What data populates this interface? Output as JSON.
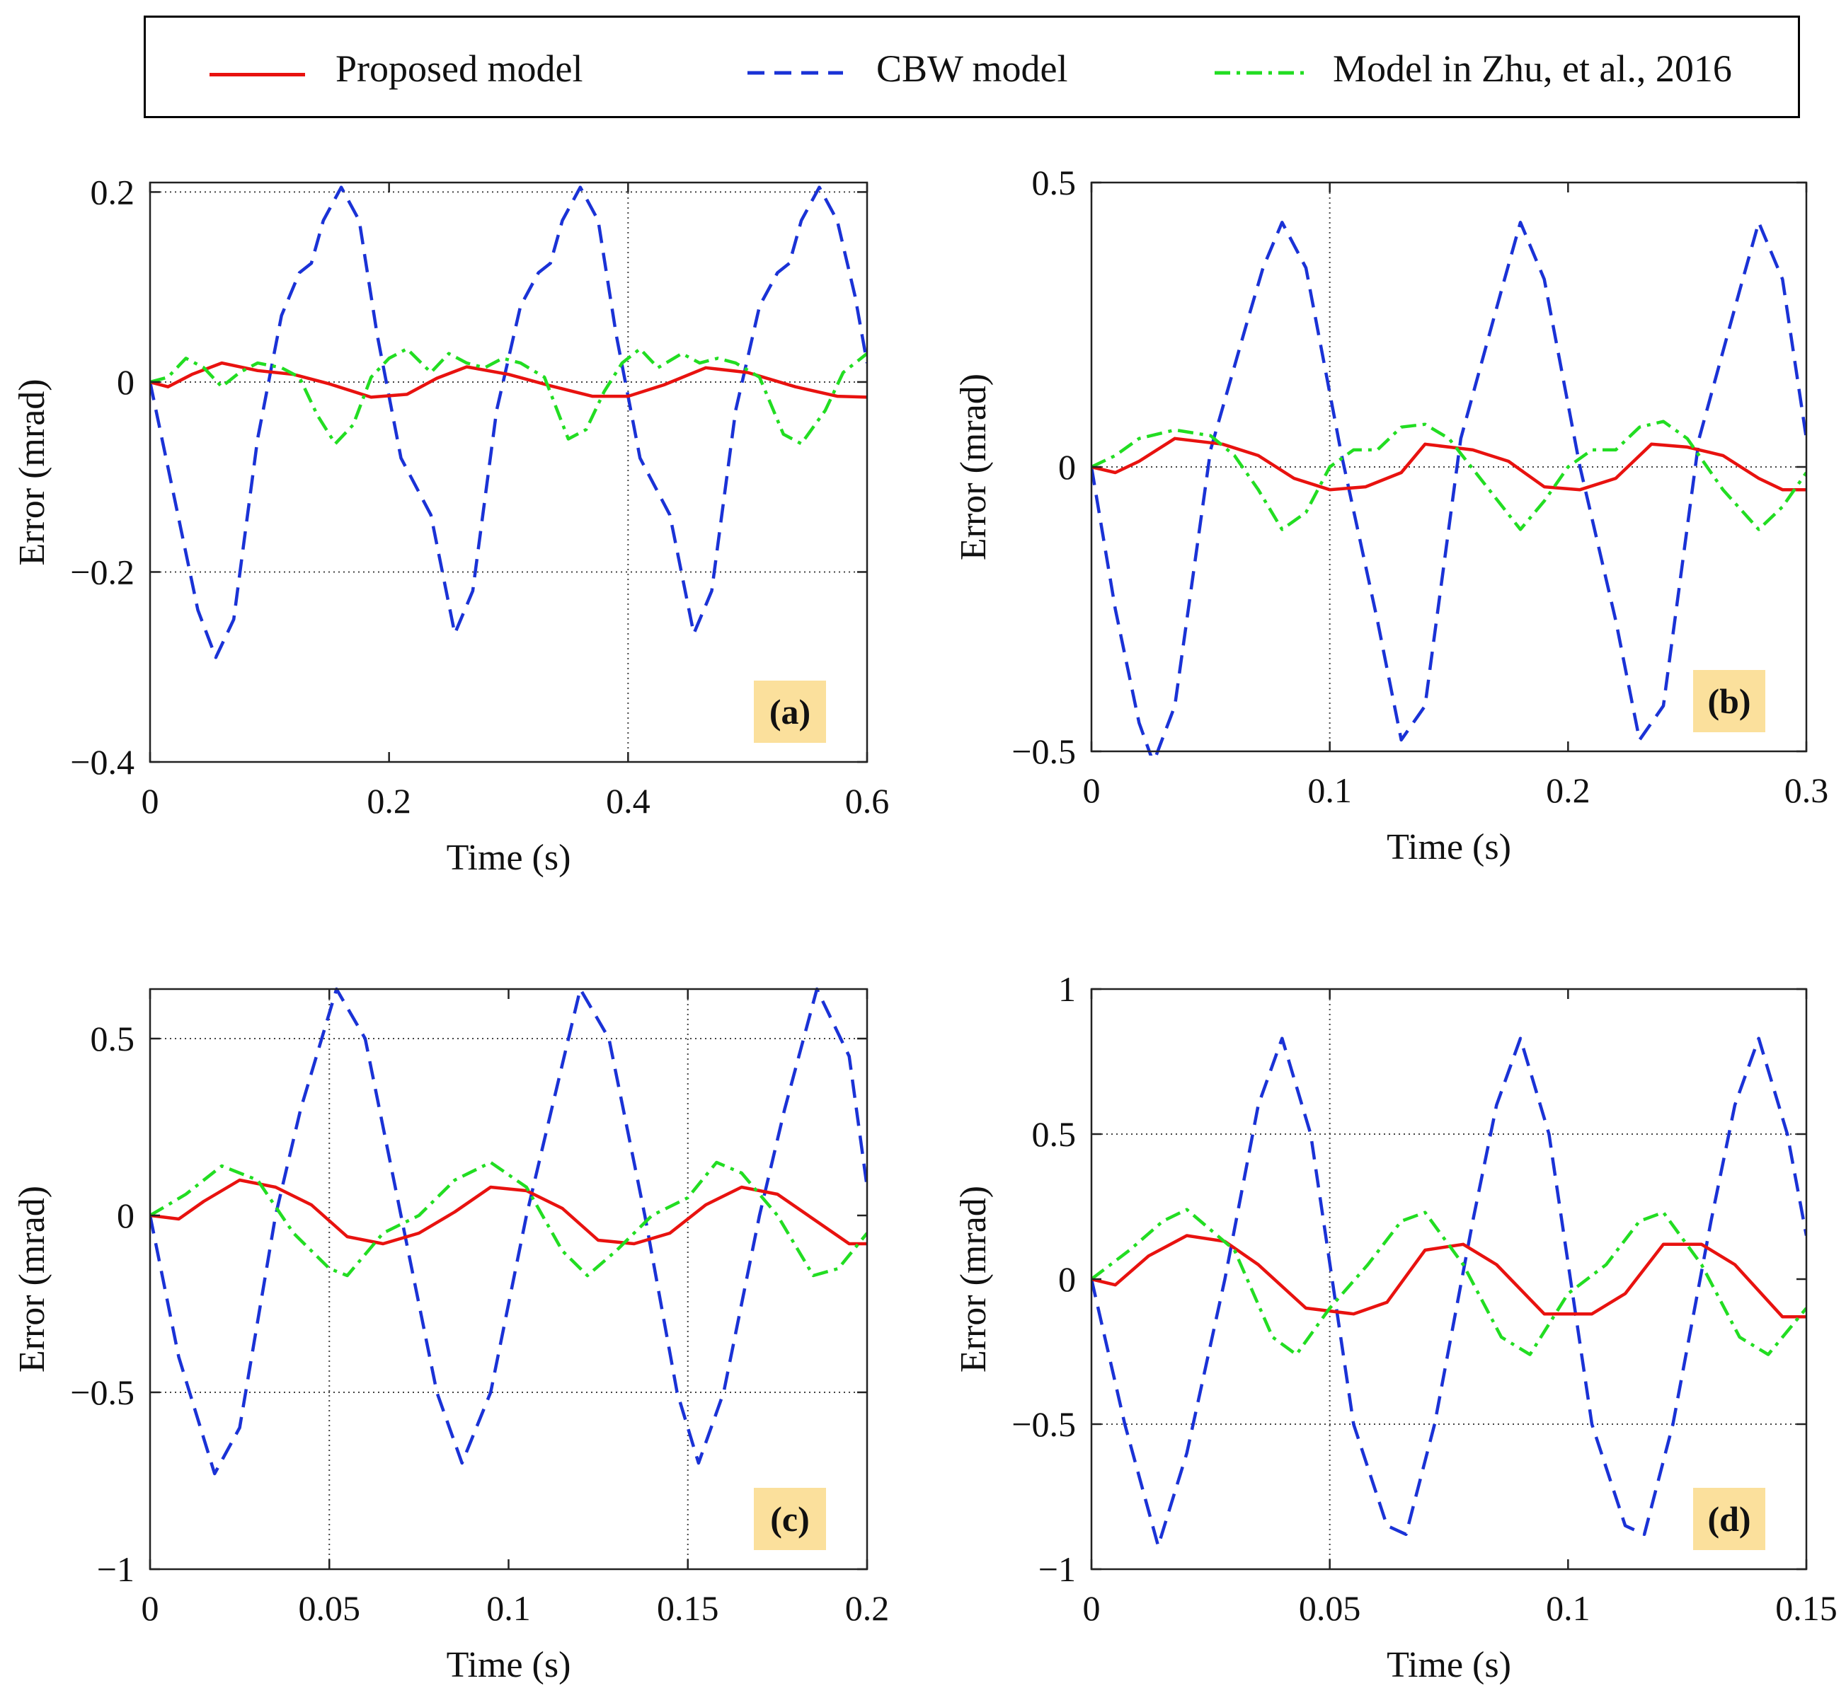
{
  "legend": {
    "items": [
      {
        "label": "Proposed model",
        "color": "#e8120f",
        "style": "solid"
      },
      {
        "label": "CBW model",
        "color": "#1a32d6",
        "style": "dashed"
      },
      {
        "label": "Model in Zhu, et al., 2016",
        "color": "#22dd22",
        "style": "dashdot"
      }
    ]
  },
  "chart_data": [
    {
      "type": "line",
      "panel_label": "(a)",
      "xlabel": "Time (s)",
      "ylabel": "Error (mrad)",
      "xlim": [
        0,
        0.6
      ],
      "ylim": [
        -0.4,
        0.21
      ],
      "xticks": [
        0,
        0.2,
        0.4,
        0.6
      ],
      "xtick_labels": [
        "0",
        "0.2",
        "0.4",
        "0.6"
      ],
      "yticks": [
        -0.4,
        -0.2,
        0,
        0.2
      ],
      "ytick_labels": [
        "−0.4",
        "−0.2",
        "0",
        "0.2"
      ],
      "grid_x": [
        0.4
      ],
      "grid_y": [
        -0.2,
        0,
        0.2
      ],
      "series": [
        {
          "name": "CBW model",
          "x": [
            0,
            0.02,
            0.04,
            0.055,
            0.07,
            0.09,
            0.11,
            0.125,
            0.135,
            0.145,
            0.16,
            0.175,
            0.19,
            0.21,
            0.235,
            0.255,
            0.27,
            0.29,
            0.31,
            0.325,
            0.335,
            0.345,
            0.36,
            0.375,
            0.39,
            0.41,
            0.435,
            0.455,
            0.47,
            0.49,
            0.51,
            0.525,
            0.535,
            0.545,
            0.56,
            0.575,
            0.59,
            0.6
          ],
          "y": [
            0,
            -0.12,
            -0.24,
            -0.29,
            -0.25,
            -0.06,
            0.07,
            0.115,
            0.125,
            0.17,
            0.205,
            0.17,
            0.05,
            -0.08,
            -0.14,
            -0.265,
            -0.22,
            -0.03,
            0.08,
            0.115,
            0.125,
            0.17,
            0.205,
            0.17,
            0.05,
            -0.08,
            -0.14,
            -0.265,
            -0.22,
            -0.03,
            0.08,
            0.115,
            0.125,
            0.17,
            0.205,
            0.17,
            0.09,
            0.02
          ]
        },
        {
          "name": "Proposed model",
          "x": [
            0,
            0.015,
            0.035,
            0.06,
            0.09,
            0.12,
            0.15,
            0.185,
            0.215,
            0.24,
            0.265,
            0.3,
            0.335,
            0.37,
            0.4,
            0.43,
            0.465,
            0.5,
            0.54,
            0.575,
            0.6
          ],
          "y": [
            0,
            -0.005,
            0.008,
            0.02,
            0.012,
            0.008,
            -0.002,
            -0.016,
            -0.013,
            0.004,
            0.016,
            0.008,
            -0.004,
            -0.015,
            -0.015,
            -0.003,
            0.015,
            0.01,
            -0.005,
            -0.015,
            -0.016
          ]
        },
        {
          "name": "Model in Zhu, et al., 2016",
          "x": [
            0,
            0.015,
            0.03,
            0.045,
            0.06,
            0.075,
            0.09,
            0.11,
            0.125,
            0.14,
            0.155,
            0.17,
            0.185,
            0.2,
            0.215,
            0.235,
            0.25,
            0.265,
            0.28,
            0.295,
            0.31,
            0.33,
            0.35,
            0.365,
            0.38,
            0.395,
            0.41,
            0.425,
            0.445,
            0.46,
            0.475,
            0.49,
            0.51,
            0.53,
            0.545,
            0.565,
            0.58,
            0.6
          ],
          "y": [
            0,
            0.005,
            0.025,
            0.015,
            -0.005,
            0.01,
            0.02,
            0.015,
            0.005,
            -0.035,
            -0.065,
            -0.045,
            0.005,
            0.025,
            0.035,
            0.01,
            0.03,
            0.02,
            0.015,
            0.025,
            0.02,
            0.005,
            -0.06,
            -0.05,
            -0.01,
            0.02,
            0.035,
            0.015,
            0.03,
            0.02,
            0.025,
            0.02,
            0.005,
            -0.055,
            -0.065,
            -0.03,
            0.01,
            0.03
          ]
        }
      ]
    },
    {
      "type": "line",
      "panel_label": "(b)",
      "xlabel": "Time (s)",
      "ylabel": "Error (mrad)",
      "xlim": [
        0,
        0.3
      ],
      "ylim": [
        -0.5,
        0.5
      ],
      "xticks": [
        0,
        0.1,
        0.2,
        0.3
      ],
      "xtick_labels": [
        "0",
        "0.1",
        "0.2",
        "0.3"
      ],
      "yticks": [
        -0.5,
        0,
        0.5
      ],
      "ytick_labels": [
        "−0.5",
        "0",
        "0.5"
      ],
      "grid_x": [
        0.1
      ],
      "grid_y": [
        -0.5,
        0
      ],
      "series": [
        {
          "name": "CBW model",
          "x": [
            0,
            0.01,
            0.02,
            0.026,
            0.035,
            0.05,
            0.065,
            0.072,
            0.08,
            0.09,
            0.105,
            0.12,
            0.13,
            0.14,
            0.155,
            0.172,
            0.18,
            0.19,
            0.205,
            0.22,
            0.23,
            0.24,
            0.255,
            0.272,
            0.28,
            0.29,
            0.3
          ],
          "y": [
            0,
            -0.25,
            -0.45,
            -0.52,
            -0.42,
            0.03,
            0.25,
            0.35,
            0.43,
            0.35,
            0.02,
            -0.27,
            -0.48,
            -0.42,
            0.05,
            0.31,
            0.43,
            0.33,
            0.0,
            -0.27,
            -0.48,
            -0.42,
            0.05,
            0.31,
            0.43,
            0.33,
            0.05
          ]
        },
        {
          "name": "Proposed model",
          "x": [
            0,
            0.01,
            0.02,
            0.035,
            0.055,
            0.07,
            0.085,
            0.1,
            0.115,
            0.13,
            0.14,
            0.16,
            0.175,
            0.19,
            0.205,
            0.22,
            0.235,
            0.25,
            0.265,
            0.28,
            0.29,
            0.3
          ],
          "y": [
            0,
            -0.01,
            0.01,
            0.05,
            0.04,
            0.02,
            -0.02,
            -0.04,
            -0.035,
            -0.01,
            0.04,
            0.03,
            0.01,
            -0.035,
            -0.04,
            -0.02,
            0.04,
            0.035,
            0.02,
            -0.02,
            -0.04,
            -0.04
          ]
        },
        {
          "name": "Model in Zhu, et al., 2016",
          "x": [
            0,
            0.01,
            0.02,
            0.035,
            0.05,
            0.06,
            0.07,
            0.08,
            0.09,
            0.1,
            0.11,
            0.12,
            0.13,
            0.14,
            0.15,
            0.165,
            0.18,
            0.19,
            0.2,
            0.21,
            0.22,
            0.23,
            0.24,
            0.25,
            0.265,
            0.28,
            0.29,
            0.3
          ],
          "y": [
            0,
            0.02,
            0.05,
            0.065,
            0.055,
            0.02,
            -0.04,
            -0.11,
            -0.08,
            0.0,
            0.03,
            0.03,
            0.07,
            0.075,
            0.05,
            -0.03,
            -0.11,
            -0.06,
            0.0,
            0.03,
            0.03,
            0.07,
            0.08,
            0.05,
            -0.04,
            -0.11,
            -0.07,
            -0.01
          ]
        }
      ]
    },
    {
      "type": "line",
      "panel_label": "(c)",
      "xlabel": "Time (s)",
      "ylabel": "Error (mrad)",
      "xlim": [
        0,
        0.2
      ],
      "ylim": [
        -1,
        0.64
      ],
      "xticks": [
        0,
        0.05,
        0.1,
        0.15,
        0.2
      ],
      "xtick_labels": [
        "0",
        "0.05",
        "0.1",
        "0.15",
        "0.2"
      ],
      "yticks": [
        -1,
        -0.5,
        0,
        0.5
      ],
      "ytick_labels": [
        "−1",
        "−0.5",
        "0",
        "0.5"
      ],
      "grid_x": [
        0.05,
        0.15
      ],
      "grid_y": [
        -0.5,
        0.5
      ],
      "series": [
        {
          "name": "CBW model",
          "x": [
            0,
            0.008,
            0.018,
            0.025,
            0.035,
            0.042,
            0.052,
            0.06,
            0.07,
            0.08,
            0.087,
            0.095,
            0.105,
            0.112,
            0.12,
            0.128,
            0.138,
            0.147,
            0.153,
            0.16,
            0.17,
            0.177,
            0.186,
            0.195,
            0.2
          ],
          "y": [
            0,
            -0.4,
            -0.73,
            -0.6,
            0.0,
            0.3,
            0.64,
            0.5,
            0.0,
            -0.5,
            -0.7,
            -0.5,
            0.0,
            0.3,
            0.64,
            0.5,
            0.0,
            -0.5,
            -0.7,
            -0.5,
            0.0,
            0.3,
            0.64,
            0.45,
            0.08
          ]
        },
        {
          "name": "Proposed model",
          "x": [
            0,
            0.008,
            0.015,
            0.025,
            0.035,
            0.045,
            0.055,
            0.065,
            0.075,
            0.085,
            0.095,
            0.105,
            0.115,
            0.125,
            0.135,
            0.145,
            0.155,
            0.165,
            0.175,
            0.185,
            0.195,
            0.2
          ],
          "y": [
            0,
            -0.01,
            0.04,
            0.1,
            0.08,
            0.03,
            -0.06,
            -0.08,
            -0.05,
            0.01,
            0.08,
            0.07,
            0.02,
            -0.07,
            -0.08,
            -0.05,
            0.03,
            0.08,
            0.06,
            -0.01,
            -0.08,
            -0.08
          ]
        },
        {
          "name": "Model in Zhu, et al., 2016",
          "x": [
            0,
            0.01,
            0.02,
            0.03,
            0.04,
            0.05,
            0.055,
            0.065,
            0.075,
            0.085,
            0.095,
            0.105,
            0.115,
            0.122,
            0.13,
            0.14,
            0.15,
            0.158,
            0.165,
            0.175,
            0.185,
            0.192,
            0.2
          ],
          "y": [
            0,
            0.06,
            0.14,
            0.1,
            -0.05,
            -0.15,
            -0.17,
            -0.05,
            0.0,
            0.1,
            0.15,
            0.08,
            -0.1,
            -0.17,
            -0.1,
            0.0,
            0.05,
            0.15,
            0.12,
            0.0,
            -0.17,
            -0.15,
            -0.05
          ]
        }
      ]
    },
    {
      "type": "line",
      "panel_label": "(d)",
      "xlabel": "Time (s)",
      "ylabel": "Error (mrad)",
      "xlim": [
        0,
        0.15
      ],
      "ylim": [
        -1,
        1
      ],
      "xticks": [
        0,
        0.05,
        0.1,
        0.15
      ],
      "xtick_labels": [
        "0",
        "0.05",
        "0.1",
        "0.15"
      ],
      "yticks": [
        -1,
        -0.5,
        0,
        0.5,
        1
      ],
      "ytick_labels": [
        "−1",
        "−0.5",
        "0",
        "0.5",
        "1"
      ],
      "grid_x": [
        0.05
      ],
      "grid_y": [
        -0.5,
        0.5
      ],
      "series": [
        {
          "name": "CBW model",
          "x": [
            0,
            0.007,
            0.014,
            0.02,
            0.028,
            0.035,
            0.04,
            0.046,
            0.055,
            0.062,
            0.066,
            0.072,
            0.08,
            0.085,
            0.09,
            0.096,
            0.105,
            0.112,
            0.116,
            0.122,
            0.13,
            0.135,
            0.14,
            0.146,
            0.15
          ],
          "y": [
            0,
            -0.5,
            -0.92,
            -0.6,
            0.0,
            0.6,
            0.83,
            0.5,
            -0.5,
            -0.85,
            -0.88,
            -0.5,
            0.2,
            0.6,
            0.83,
            0.5,
            -0.5,
            -0.85,
            -0.88,
            -0.5,
            0.2,
            0.6,
            0.83,
            0.5,
            0.15
          ]
        },
        {
          "name": "Proposed model",
          "x": [
            0,
            0.005,
            0.012,
            0.02,
            0.028,
            0.035,
            0.045,
            0.055,
            0.062,
            0.07,
            0.078,
            0.085,
            0.095,
            0.105,
            0.112,
            0.12,
            0.128,
            0.135,
            0.145,
            0.15
          ],
          "y": [
            0,
            -0.02,
            0.08,
            0.15,
            0.13,
            0.05,
            -0.1,
            -0.12,
            -0.08,
            0.1,
            0.12,
            0.05,
            -0.12,
            -0.12,
            -0.05,
            0.12,
            0.12,
            0.05,
            -0.13,
            -0.13
          ]
        },
        {
          "name": "Model in Zhu, et al., 2016",
          "x": [
            0,
            0.008,
            0.015,
            0.02,
            0.03,
            0.038,
            0.043,
            0.05,
            0.058,
            0.065,
            0.07,
            0.078,
            0.086,
            0.092,
            0.1,
            0.108,
            0.115,
            0.12,
            0.128,
            0.136,
            0.142,
            0.15
          ],
          "y": [
            0,
            0.1,
            0.2,
            0.24,
            0.1,
            -0.2,
            -0.26,
            -0.1,
            0.05,
            0.2,
            0.23,
            0.05,
            -0.2,
            -0.26,
            -0.05,
            0.05,
            0.2,
            0.23,
            0.05,
            -0.2,
            -0.26,
            -0.1
          ]
        }
      ]
    }
  ]
}
